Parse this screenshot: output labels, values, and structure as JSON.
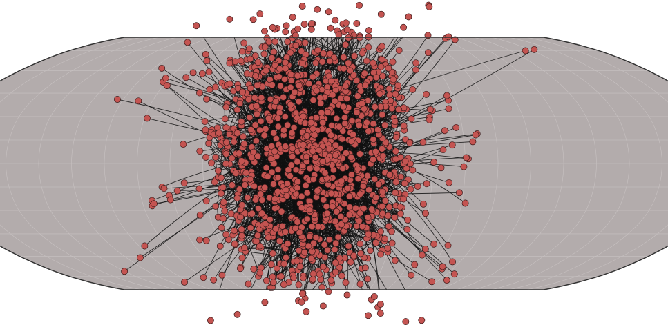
{
  "map": {
    "projection": "robinson",
    "ocean_color": "#b3acac",
    "outline_color": "#333333",
    "graticule_color": "#c8c2c2",
    "graticule_step_deg": 15
  },
  "network": {
    "node_fill": "#c45451",
    "node_stroke": "#3a1a1a",
    "edge_color": "#111111",
    "cluster_center_lonlat": [
      -10,
      5
    ],
    "outlier_nodes_lonlat": [
      [
        -62,
        49
      ],
      [
        -97,
        40
      ],
      [
        -108,
        41
      ],
      [
        -88,
        50
      ],
      [
        -74,
        58
      ],
      [
        93,
        88
      ],
      [
        98,
        86
      ],
      [
        130,
        75
      ],
      [
        138,
        76
      ],
      [
        -135,
        -71
      ],
      [
        -110,
        -80
      ],
      [
        -90,
        -76
      ],
      [
        -75,
        -74
      ],
      [
        -65,
        -82
      ],
      [
        -58,
        -68
      ],
      [
        -112,
        -61
      ],
      [
        -102,
        -53
      ],
      [
        50,
        -55
      ],
      [
        36,
        -63
      ],
      [
        30,
        -57
      ]
    ]
  }
}
